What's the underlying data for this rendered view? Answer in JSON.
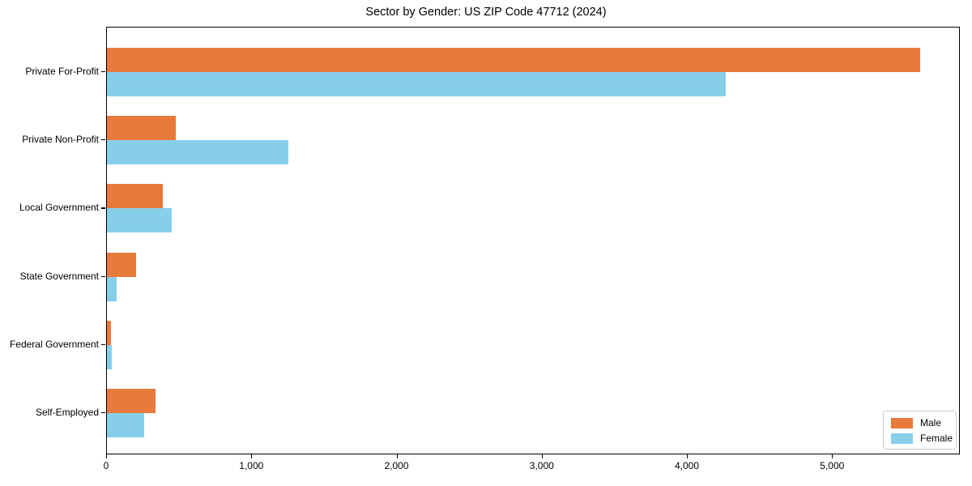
{
  "figure": {
    "background": "#ffffff",
    "axis_color": "#000000"
  },
  "chart_data": {
    "type": "bar",
    "orientation": "horizontal",
    "title": "Sector by Gender: US ZIP Code 47712 (2024)",
    "categories": [
      "Private For-Profit",
      "Private Non-Profit",
      "Local Government",
      "State Government",
      "Federal Government",
      "Self-Employed"
    ],
    "series": [
      {
        "name": "Male",
        "color": "#e87a3c",
        "values": [
          5600,
          475,
          385,
          200,
          30,
          335
        ]
      },
      {
        "name": "Female",
        "color": "#87ceeb",
        "values": [
          4260,
          1250,
          445,
          65,
          35,
          255
        ]
      }
    ],
    "xlim": [
      0,
      5880
    ],
    "x_ticks": [
      0,
      1000,
      2000,
      3000,
      4000,
      5000
    ],
    "x_tick_labels": [
      "0",
      "1,000",
      "2,000",
      "3,000",
      "4,000",
      "5,000"
    ],
    "xlabel": "",
    "ylabel": "",
    "grid": false,
    "legend": {
      "position": "lower right",
      "entries": [
        "Male",
        "Female"
      ]
    }
  }
}
